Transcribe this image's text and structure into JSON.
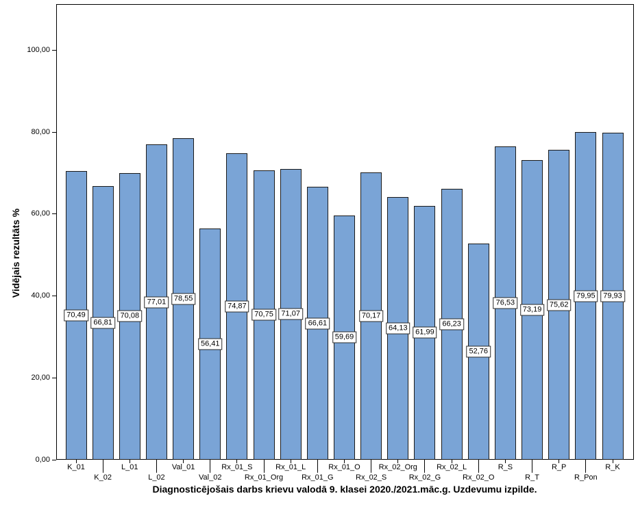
{
  "chart_data": {
    "type": "bar",
    "title": "Diagnosticējošais darbs krievu valodā 9. klasei 2020./2021.māc.g. Uzdevumu izpilde.",
    "xlabel": "",
    "ylabel": "Vidējais rezultāts %",
    "ylim": [
      0,
      111.3
    ],
    "grid": false,
    "legend_position": "none",
    "yticks": [
      0,
      20,
      40,
      60,
      80,
      100
    ],
    "ytick_labels": [
      "0,00",
      "20,00",
      "40,00",
      "60,00",
      "80,00",
      "100,00"
    ],
    "categories": [
      "K_01",
      "K_02",
      "L_01",
      "L_02",
      "Val_01",
      "Val_02",
      "Rx_01_S",
      "Rx_01_Org",
      "Rx_01_L",
      "Rx_01_G",
      "Rx_01_O",
      "Rx_02_S",
      "Rx_02_Org",
      "Rx_02_G",
      "Rx_02_L",
      "Rx_02_O",
      "R_S",
      "R_T",
      "R_P",
      "R_Pon",
      "R_K"
    ],
    "values": [
      70.49,
      66.81,
      70.08,
      77.01,
      78.55,
      56.41,
      74.87,
      70.75,
      71.07,
      66.61,
      59.69,
      70.17,
      64.13,
      61.99,
      66.23,
      52.76,
      76.53,
      73.19,
      75.62,
      79.95,
      79.93
    ],
    "value_labels": [
      "70,49",
      "66,81",
      "70,08",
      "77,01",
      "78,55",
      "56,41",
      "74,87",
      "70,75",
      "71,07",
      "66,61",
      "59,69",
      "70,17",
      "64,13",
      "61,99",
      "66,23",
      "52,76",
      "76,53",
      "73,19",
      "75,62",
      "79,95",
      "79,93"
    ],
    "colors": {
      "bar_fill": "#7AA4D6",
      "bar_border": "#1A1A1A",
      "axis": "#000000",
      "value_box_bg": "#FFFFFF",
      "value_box_border": "#2B2B2B",
      "text": "#000000"
    }
  }
}
